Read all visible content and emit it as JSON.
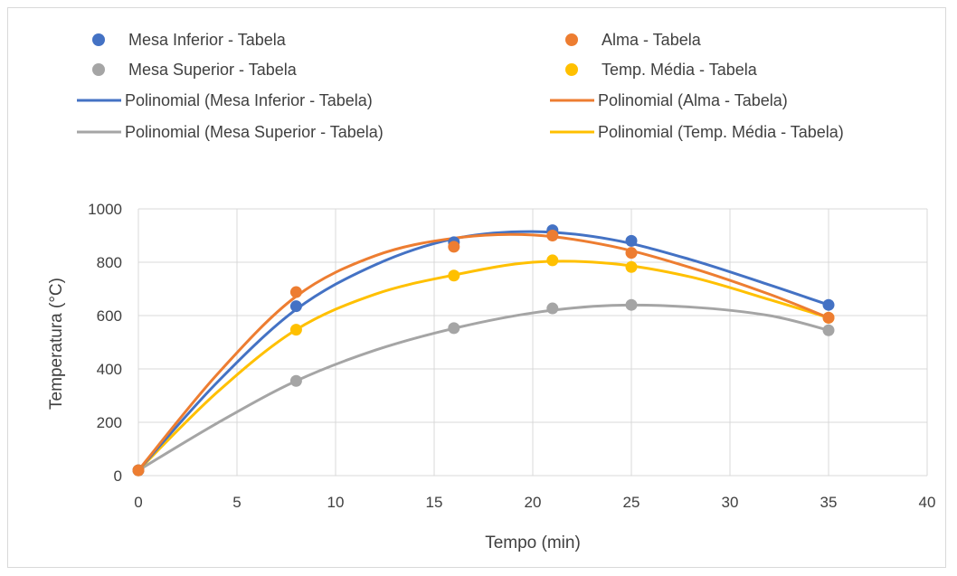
{
  "chart_data": {
    "type": "scatter",
    "title": "",
    "xlabel": "Tempo (min)",
    "ylabel": "Temperatura (°C)",
    "xlim": [
      0,
      40
    ],
    "ylim": [
      0,
      1000
    ],
    "xticks": [
      0,
      5,
      10,
      15,
      20,
      25,
      30,
      35,
      40
    ],
    "yticks": [
      0,
      200,
      400,
      600,
      800,
      1000
    ],
    "grid": true,
    "legend_position": "top",
    "x": [
      0,
      8,
      16,
      21,
      25,
      35
    ],
    "series": [
      {
        "name": "Mesa Inferior - Tabela",
        "marker": "circle",
        "color": "#4472C4",
        "values": [
          20,
          635,
          875,
          920,
          880,
          640
        ]
      },
      {
        "name": "Alma - Tabela",
        "marker": "circle",
        "color": "#ED7D31",
        "values": [
          20,
          688,
          858,
          900,
          835,
          592
        ]
      },
      {
        "name": "Mesa Superior - Tabela",
        "marker": "circle",
        "color": "#A5A5A5",
        "values": [
          20,
          355,
          553,
          627,
          640,
          545
        ]
      },
      {
        "name": "Temp. Média - Tabela",
        "marker": "circle",
        "color": "#FFC000",
        "values": [
          20,
          547,
          750,
          807,
          782,
          592
        ]
      }
    ],
    "trendlines": [
      {
        "name": "Polinomial (Mesa Inferior - Tabela)",
        "color": "#4472C4",
        "x": [
          0,
          4,
          8,
          12,
          16,
          20,
          24,
          28,
          32,
          35
        ],
        "values": [
          20,
          350,
          623,
          790,
          888,
          915,
          885,
          810,
          715,
          640
        ]
      },
      {
        "name": "Polinomial (Alma - Tabela)",
        "color": "#ED7D31",
        "x": [
          0,
          4,
          8,
          12,
          16,
          20,
          24,
          28,
          32,
          35
        ],
        "values": [
          20,
          380,
          672,
          824,
          890,
          902,
          860,
          780,
          680,
          592
        ]
      },
      {
        "name": "Polinomial (Mesa Superior - Tabela)",
        "color": "#A5A5A5",
        "x": [
          0,
          4,
          8,
          12,
          16,
          20,
          24,
          28,
          32,
          35
        ],
        "values": [
          20,
          197,
          355,
          470,
          552,
          610,
          638,
          632,
          600,
          545
        ]
      },
      {
        "name": "Polinomial (Temp. Média - Tabela)",
        "color": "#FFC000",
        "x": [
          0,
          4,
          8,
          12,
          16,
          20,
          24,
          28,
          32,
          35
        ],
        "values": [
          20,
          313,
          547,
          680,
          752,
          800,
          795,
          745,
          660,
          592
        ]
      }
    ]
  }
}
